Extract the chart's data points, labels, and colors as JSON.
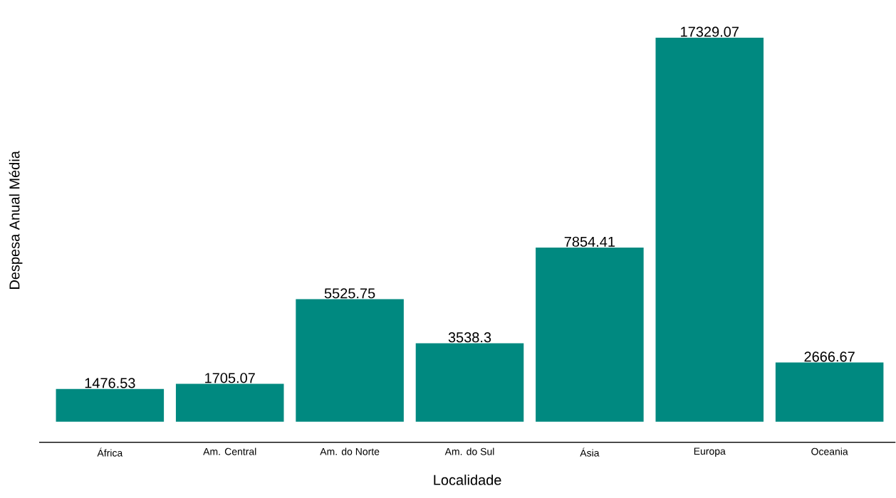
{
  "chart_data": {
    "type": "bar",
    "xlabel": "Localidade",
    "ylabel": "Despesa Anual Média",
    "categories": [
      "África",
      "Am. Central",
      "Am. do Norte",
      "Am. do Sul",
      "Ásia",
      "Europa",
      "Oceania"
    ],
    "values": [
      1476.53,
      1705.07,
      5525.75,
      3538.3,
      7854.41,
      17329.07,
      2666.67
    ],
    "color": "#008980",
    "data_labels": true
  }
}
